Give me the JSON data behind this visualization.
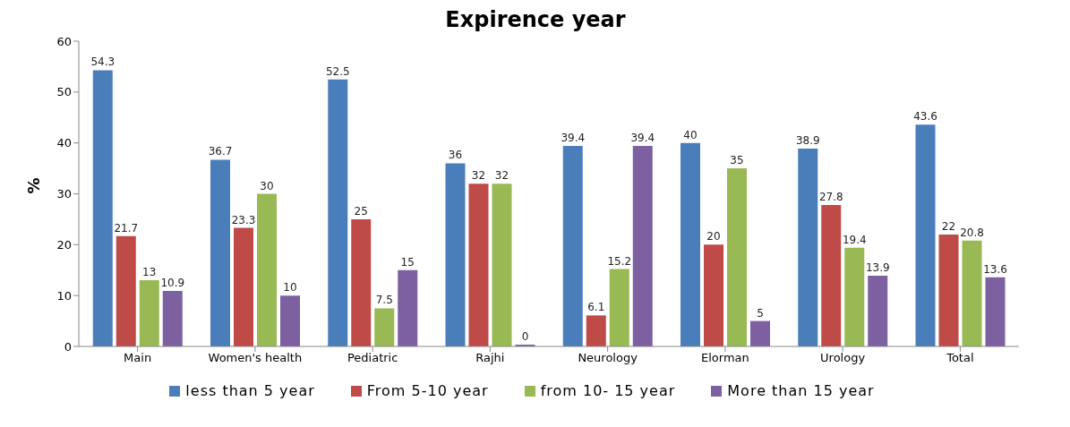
{
  "chart_data": {
    "type": "bar",
    "title": "Expirence year",
    "ylabel": "%",
    "categories": [
      "Main",
      "Women's health",
      "Pediatric",
      "Rajhi",
      "Neurology",
      "Elorman",
      "Urology",
      "Total"
    ],
    "series": [
      {
        "name": "less than 5 year",
        "color": "#4a7ebb",
        "values": [
          54.3,
          36.7,
          52.5,
          36,
          39.4,
          40,
          38.9,
          43.6
        ]
      },
      {
        "name": "From 5-10 year",
        "color": "#be4b48",
        "values": [
          21.7,
          23.3,
          25,
          32,
          6.1,
          20,
          27.8,
          22
        ]
      },
      {
        "name": "from 10- 15 year",
        "color": "#98b954",
        "values": [
          13,
          30,
          7.5,
          32,
          15.2,
          35,
          19.4,
          20.8
        ]
      },
      {
        "name": "More than 15 year",
        "color": "#7d60a0",
        "values": [
          10.9,
          10,
          15,
          0,
          39.4,
          5,
          13.9,
          13.6
        ]
      }
    ],
    "ylim": [
      0,
      60
    ],
    "yticks": [
      0,
      10,
      20,
      30,
      40,
      50,
      60
    ],
    "grid": false,
    "legend": "bottom",
    "data_labels": true
  }
}
